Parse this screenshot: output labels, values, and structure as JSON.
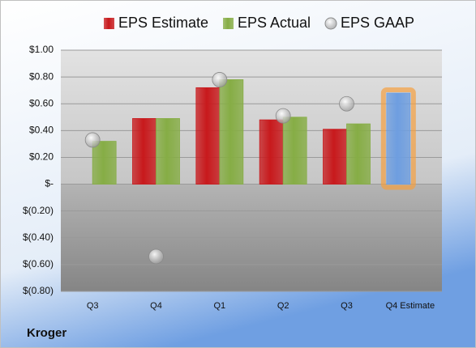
{
  "chart_data": {
    "type": "bar",
    "company": "Kroger",
    "categories": [
      "Q3",
      "Q4",
      "Q1",
      "Q2",
      "Q3",
      "Q4 Estimate"
    ],
    "series": [
      {
        "name": "EPS Estimate",
        "color": "#c8191c",
        "colors": [
          "#c8191c",
          "#c8191c",
          "#c8191c",
          "#c8191c",
          "#c8191c",
          "#6e9ee0"
        ],
        "values": [
          null,
          0.49,
          0.72,
          0.48,
          0.41,
          0.68
        ]
      },
      {
        "name": "EPS Actual",
        "color": "#86ad45",
        "values": [
          0.32,
          0.49,
          0.78,
          0.5,
          0.45,
          null
        ]
      },
      {
        "name": "EPS GAAP",
        "color": "#c4c4c4",
        "marker": "circle",
        "values": [
          0.33,
          -0.54,
          0.78,
          0.51,
          0.6,
          null
        ]
      }
    ],
    "highlight_color": "#f5a040",
    "ylim": [
      -0.8,
      1.0
    ],
    "yticks": [
      {
        "value": -0.8,
        "label": "$(0.80)"
      },
      {
        "value": -0.6,
        "label": "$(0.60)"
      },
      {
        "value": -0.4,
        "label": "$(0.40)"
      },
      {
        "value": -0.2,
        "label": "$(0.20)"
      },
      {
        "value": 0,
        "label": "$-"
      },
      {
        "value": 0.2,
        "label": "$0.20"
      },
      {
        "value": 0.4,
        "label": "$0.40"
      },
      {
        "value": 0.6,
        "label": "$0.60"
      },
      {
        "value": 0.8,
        "label": "$0.80"
      },
      {
        "value": 1.0,
        "label": "$1.00"
      }
    ],
    "grid": true
  }
}
